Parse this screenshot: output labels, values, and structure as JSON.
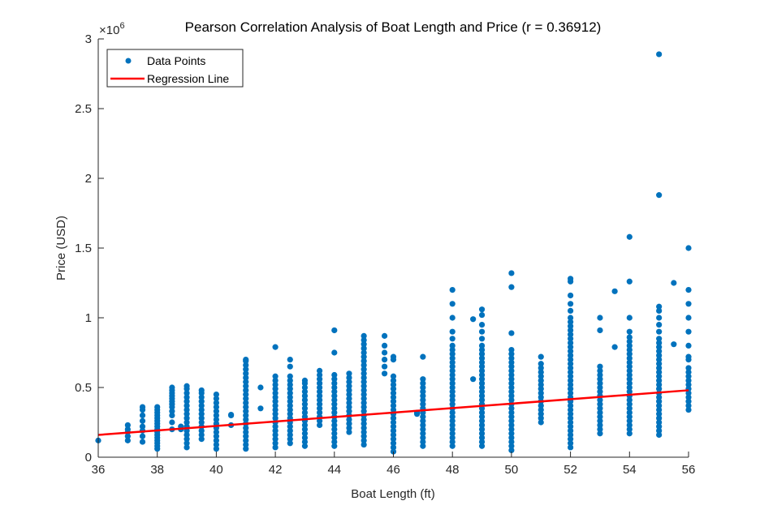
{
  "chart_data": {
    "type": "scatter",
    "title": "Pearson Correlation Analysis of Boat Length and Price (r = 0.36912)",
    "xlabel": "Boat Length (ft)",
    "ylabel": "Price (USD)",
    "y_exponent_label": "×10",
    "y_exponent_power": "6",
    "xlim": [
      36,
      56
    ],
    "ylim": [
      0,
      3000000
    ],
    "x_ticks": [
      36,
      38,
      40,
      42,
      44,
      46,
      48,
      50,
      52,
      54,
      56
    ],
    "x_tick_labels": [
      "36",
      "38",
      "40",
      "42",
      "44",
      "46",
      "48",
      "50",
      "52",
      "54",
      "56"
    ],
    "y_ticks": [
      0,
      500000,
      1000000,
      1500000,
      2000000,
      2500000,
      3000000
    ],
    "y_tick_labels": [
      "0",
      "0.5",
      "1",
      "1.5",
      "2",
      "2.5",
      "3"
    ],
    "grid": false,
    "legend": {
      "placement": "top-left",
      "entries": [
        "Data Points",
        "Regression Line"
      ]
    },
    "colors": {
      "points": "#0072BD",
      "regression": "#FF0000",
      "axis": "#262626"
    },
    "regression": {
      "name": "Regression Line",
      "x": [
        36,
        56
      ],
      "y": [
        160000,
        480000
      ]
    },
    "scatter_columns": [
      {
        "x": 36,
        "ys": [
          120000
        ]
      },
      {
        "x": 37,
        "ys": [
          120000,
          150000,
          180000,
          200000,
          230000
        ]
      },
      {
        "x": 37.5,
        "ys": [
          110000,
          150000,
          190000,
          220000,
          260000,
          300000,
          340000,
          360000
        ]
      },
      {
        "x": 38,
        "ys": [
          60000,
          80000,
          100000,
          120000,
          140000,
          160000,
          180000,
          200000,
          220000,
          240000,
          260000,
          280000,
          300000,
          320000,
          340000,
          360000
        ]
      },
      {
        "x": 38.5,
        "ys": [
          200000,
          250000,
          300000,
          330000,
          360000,
          380000,
          400000,
          420000,
          440000,
          460000,
          480000,
          500000
        ]
      },
      {
        "x": 38.8,
        "ys": [
          200000,
          220000
        ]
      },
      {
        "x": 39,
        "ys": [
          70000,
          100000,
          130000,
          160000,
          190000,
          220000,
          250000,
          280000,
          310000,
          340000,
          370000,
          400000,
          430000,
          460000,
          490000,
          510000
        ]
      },
      {
        "x": 39.5,
        "ys": [
          130000,
          160000,
          190000,
          220000,
          250000,
          280000,
          310000,
          340000,
          370000,
          400000,
          430000,
          460000,
          480000
        ]
      },
      {
        "x": 40,
        "ys": [
          60000,
          90000,
          120000,
          150000,
          180000,
          210000,
          240000,
          270000,
          300000,
          330000,
          360000,
          390000,
          420000,
          450000
        ]
      },
      {
        "x": 40.5,
        "ys": [
          230000,
          300000,
          305000
        ]
      },
      {
        "x": 41,
        "ys": [
          60000,
          90000,
          120000,
          150000,
          180000,
          210000,
          240000,
          270000,
          300000,
          330000,
          360000,
          390000,
          420000,
          450000,
          480000,
          510000,
          540000,
          570000,
          600000,
          630000,
          660000,
          690000,
          700000
        ]
      },
      {
        "x": 41.5,
        "ys": [
          350000,
          500000
        ]
      },
      {
        "x": 42,
        "ys": [
          70000,
          100000,
          130000,
          160000,
          190000,
          220000,
          250000,
          280000,
          310000,
          340000,
          370000,
          400000,
          430000,
          460000,
          490000,
          520000,
          550000,
          580000,
          790000
        ]
      },
      {
        "x": 42.5,
        "ys": [
          100000,
          130000,
          160000,
          190000,
          220000,
          250000,
          280000,
          310000,
          340000,
          370000,
          400000,
          430000,
          460000,
          490000,
          520000,
          550000,
          580000,
          650000,
          700000
        ]
      },
      {
        "x": 43,
        "ys": [
          80000,
          110000,
          140000,
          170000,
          200000,
          230000,
          260000,
          290000,
          320000,
          350000,
          380000,
          410000,
          440000,
          470000,
          500000,
          530000,
          550000
        ]
      },
      {
        "x": 43.5,
        "ys": [
          230000,
          260000,
          290000,
          320000,
          350000,
          380000,
          410000,
          440000,
          470000,
          500000,
          530000,
          560000,
          590000,
          620000
        ]
      },
      {
        "x": 44,
        "ys": [
          80000,
          110000,
          140000,
          170000,
          200000,
          230000,
          260000,
          290000,
          320000,
          350000,
          380000,
          410000,
          440000,
          470000,
          500000,
          530000,
          560000,
          590000,
          750000,
          910000
        ]
      },
      {
        "x": 44.5,
        "ys": [
          180000,
          210000,
          240000,
          270000,
          300000,
          330000,
          360000,
          390000,
          420000,
          450000,
          480000,
          510000,
          540000,
          570000,
          600000
        ]
      },
      {
        "x": 45,
        "ys": [
          90000,
          120000,
          150000,
          180000,
          210000,
          240000,
          270000,
          300000,
          330000,
          360000,
          390000,
          420000,
          450000,
          480000,
          510000,
          540000,
          570000,
          600000,
          630000,
          660000,
          690000,
          720000,
          750000,
          780000,
          810000,
          840000,
          870000
        ]
      },
      {
        "x": 45.7,
        "ys": [
          600000,
          650000,
          700000,
          750000,
          800000,
          870000
        ]
      },
      {
        "x": 46,
        "ys": [
          40000,
          70000,
          100000,
          130000,
          160000,
          190000,
          220000,
          250000,
          280000,
          310000,
          340000,
          370000,
          400000,
          430000,
          460000,
          490000,
          520000,
          550000,
          580000,
          700000,
          720000
        ]
      },
      {
        "x": 46.8,
        "ys": [
          310000,
          320000
        ]
      },
      {
        "x": 47,
        "ys": [
          80000,
          110000,
          140000,
          170000,
          200000,
          230000,
          260000,
          290000,
          320000,
          350000,
          380000,
          410000,
          440000,
          470000,
          500000,
          530000,
          560000,
          720000
        ]
      },
      {
        "x": 48,
        "ys": [
          80000,
          110000,
          140000,
          170000,
          200000,
          230000,
          260000,
          290000,
          320000,
          350000,
          380000,
          410000,
          440000,
          470000,
          500000,
          530000,
          560000,
          590000,
          620000,
          650000,
          680000,
          710000,
          740000,
          770000,
          800000,
          850000,
          900000,
          1000000,
          1100000,
          1200000
        ]
      },
      {
        "x": 48.7,
        "ys": [
          560000,
          990000
        ]
      },
      {
        "x": 49,
        "ys": [
          80000,
          110000,
          140000,
          170000,
          200000,
          230000,
          260000,
          290000,
          320000,
          350000,
          380000,
          410000,
          440000,
          470000,
          500000,
          530000,
          560000,
          590000,
          620000,
          650000,
          680000,
          710000,
          740000,
          770000,
          800000,
          850000,
          900000,
          950000,
          1020000,
          1060000
        ]
      },
      {
        "x": 50,
        "ys": [
          50000,
          80000,
          110000,
          140000,
          170000,
          200000,
          230000,
          260000,
          290000,
          320000,
          350000,
          380000,
          410000,
          440000,
          470000,
          500000,
          530000,
          560000,
          590000,
          620000,
          650000,
          680000,
          710000,
          740000,
          770000,
          890000,
          1220000,
          1320000
        ]
      },
      {
        "x": 51,
        "ys": [
          250000,
          280000,
          310000,
          340000,
          370000,
          400000,
          430000,
          460000,
          490000,
          520000,
          550000,
          580000,
          610000,
          640000,
          670000,
          720000
        ]
      },
      {
        "x": 52,
        "ys": [
          70000,
          100000,
          130000,
          160000,
          190000,
          220000,
          250000,
          280000,
          310000,
          340000,
          370000,
          400000,
          430000,
          460000,
          490000,
          520000,
          550000,
          580000,
          610000,
          640000,
          670000,
          700000,
          730000,
          760000,
          790000,
          820000,
          850000,
          880000,
          910000,
          940000,
          970000,
          1000000,
          1050000,
          1100000,
          1160000,
          1260000,
          1280000
        ]
      },
      {
        "x": 53,
        "ys": [
          170000,
          200000,
          230000,
          260000,
          290000,
          320000,
          350000,
          380000,
          410000,
          440000,
          470000,
          500000,
          530000,
          560000,
          590000,
          620000,
          650000,
          910000,
          1000000
        ]
      },
      {
        "x": 53.5,
        "ys": [
          790000,
          1190000
        ]
      },
      {
        "x": 54,
        "ys": [
          170000,
          200000,
          230000,
          260000,
          290000,
          320000,
          350000,
          380000,
          410000,
          440000,
          470000,
          500000,
          530000,
          560000,
          590000,
          620000,
          650000,
          680000,
          710000,
          740000,
          770000,
          800000,
          830000,
          860000,
          900000,
          1000000,
          1260000,
          1580000
        ]
      },
      {
        "x": 55,
        "ys": [
          160000,
          190000,
          220000,
          250000,
          280000,
          310000,
          340000,
          370000,
          400000,
          430000,
          460000,
          490000,
          520000,
          550000,
          580000,
          610000,
          640000,
          670000,
          700000,
          730000,
          760000,
          790000,
          820000,
          850000,
          900000,
          950000,
          1000000,
          1050000,
          1080000,
          1880000,
          2890000
        ]
      },
      {
        "x": 55.5,
        "ys": [
          810000,
          1250000
        ]
      },
      {
        "x": 56,
        "ys": [
          340000,
          370000,
          400000,
          430000,
          460000,
          490000,
          520000,
          550000,
          580000,
          610000,
          640000,
          700000,
          720000,
          800000,
          900000,
          1000000,
          1100000,
          1200000,
          1500000
        ]
      }
    ]
  }
}
